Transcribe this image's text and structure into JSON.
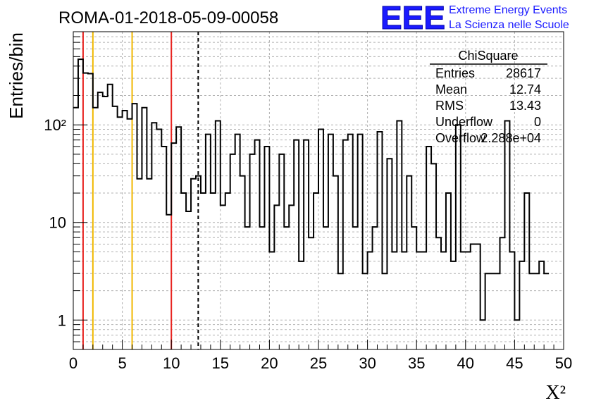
{
  "chart_data": {
    "type": "histogram",
    "title": "ROMA-01-2018-05-09-00058",
    "xlabel": "X²",
    "ylabel": "Entries/bin",
    "xlim": [
      0,
      50
    ],
    "ylim": [
      0.5,
      900
    ],
    "yscale": "log",
    "grid": true,
    "x_ticks": [
      "0",
      "5",
      "10",
      "15",
      "20",
      "25",
      "30",
      "35",
      "40",
      "45",
      "50"
    ],
    "y_ticks": [
      {
        "value": 1,
        "label": "1"
      },
      {
        "value": 10,
        "label": "10"
      },
      {
        "value": 100,
        "label": "10²"
      }
    ],
    "bin_width": 0.5,
    "values": [
      150,
      470,
      340,
      335,
      150,
      215,
      195,
      260,
      155,
      120,
      140,
      115,
      165,
      28,
      150,
      28,
      105,
      90,
      60,
      12,
      65,
      95,
      20,
      13,
      28,
      30,
      20,
      80,
      20,
      110,
      15,
      20,
      50,
      80,
      30,
      9,
      50,
      70,
      9,
      60,
      5,
      15,
      50,
      9,
      15,
      70,
      4,
      70,
      7,
      20,
      90,
      9,
      80,
      30,
      3,
      70,
      80,
      9,
      80,
      3,
      5,
      9,
      85,
      3,
      45,
      5,
      110,
      5,
      30,
      9,
      5,
      5,
      60,
      40,
      7,
      5,
      20,
      4,
      100,
      5,
      5,
      6,
      6,
      1,
      3,
      3,
      3,
      7,
      110,
      5,
      1,
      4,
      20,
      3,
      3,
      4,
      3
    ],
    "vlines": [
      {
        "x": 1,
        "color": "#e8231f",
        "style": "solid"
      },
      {
        "x": 2,
        "color": "#f0b800",
        "style": "solid"
      },
      {
        "x": 6,
        "color": "#f0b800",
        "style": "solid"
      },
      {
        "x": 10,
        "color": "#e8231f",
        "style": "solid"
      },
      {
        "x": 12.74,
        "color": "#000000",
        "style": "dashed"
      }
    ]
  },
  "logo": {
    "letters": "EEE",
    "line1": "Extreme Energy Events",
    "line2": "La Scienza nelle Scuole",
    "color": "#1a1aff"
  },
  "stats": {
    "title": "ChiSquare",
    "rows": [
      {
        "label": "Entries",
        "value": "28617"
      },
      {
        "label": "Mean",
        "value": "12.74"
      },
      {
        "label": "RMS",
        "value": "13.43"
      },
      {
        "label": "Underflow",
        "value": "0"
      },
      {
        "label": "Overflow",
        "value": "2.288e+04"
      }
    ]
  }
}
